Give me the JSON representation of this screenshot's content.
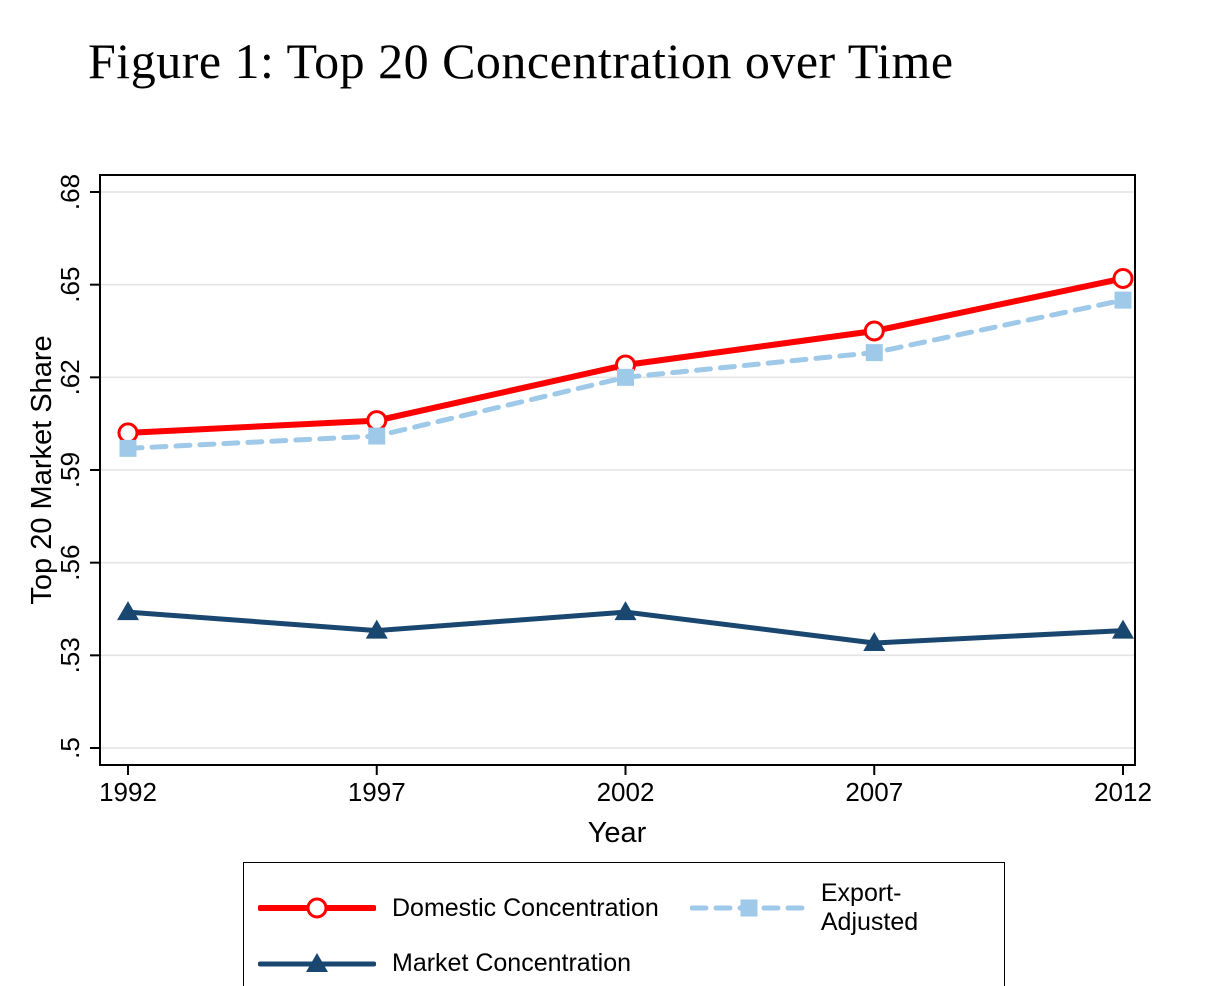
{
  "chart_data": {
    "type": "line",
    "title": "Figure 1: Top 20 Concentration over Time",
    "xlabel": "Year",
    "ylabel": "Top 20 Market Share",
    "x": [
      1992,
      1997,
      2002,
      2007,
      2012
    ],
    "xticks": [
      1992,
      1997,
      2002,
      2007,
      2012
    ],
    "xtick_labels": [
      "1992",
      "1997",
      "2002",
      "2007",
      "2012"
    ],
    "ylim": [
      0.5,
      0.68
    ],
    "yticks": [
      0.5,
      0.53,
      0.56,
      0.59,
      0.62,
      0.65,
      0.68
    ],
    "ytick_labels": [
      ".5",
      ".53",
      ".56",
      ".59",
      ".62",
      ".65",
      ".68"
    ],
    "grid": true,
    "grid_color": "#e4e4e4",
    "frame_color": "#000000",
    "legend_position": "bottom",
    "series": [
      {
        "name": "Domestic Concentration",
        "values": [
          0.602,
          0.606,
          0.624,
          0.635,
          0.652
        ],
        "color": "#ff0000",
        "line_style": "solid",
        "line_width": 6,
        "marker": "open-circle"
      },
      {
        "name": "Export-Adjusted",
        "values": [
          0.597,
          0.601,
          0.62,
          0.628,
          0.645
        ],
        "color": "#9fc9e8",
        "line_style": "dashed",
        "line_width": 5,
        "marker": "filled-square"
      },
      {
        "name": "Market Concentration",
        "values": [
          0.544,
          0.538,
          0.544,
          0.534,
          0.538
        ],
        "color": "#1a476f",
        "line_style": "solid",
        "line_width": 5,
        "marker": "filled-triangle"
      }
    ]
  }
}
